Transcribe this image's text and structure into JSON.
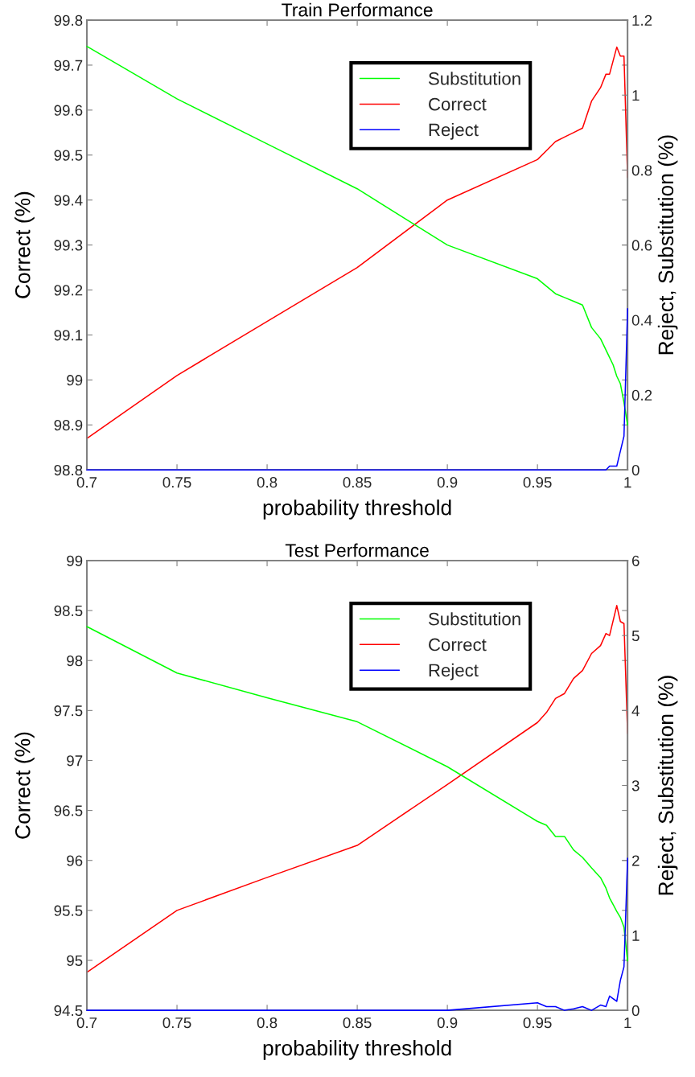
{
  "chart_data": [
    {
      "type": "line",
      "title": "Train Performance",
      "xlabel": "probability threshold",
      "ylabel": "Correct (%)",
      "y2label": "Reject, Substitution (%)",
      "x": [
        0.7,
        0.75,
        0.8,
        0.85,
        0.9,
        0.95,
        0.955,
        0.96,
        0.965,
        0.97,
        0.975,
        0.98,
        0.985,
        0.988,
        0.99,
        0.992,
        0.994,
        0.996,
        0.998,
        1.0
      ],
      "xlim": [
        0.7,
        1
      ],
      "xticks": [
        0.7,
        0.75,
        0.8,
        0.85,
        0.9,
        0.95,
        1
      ],
      "ylim": [
        98.8,
        99.8
      ],
      "yticks": [
        98.8,
        98.9,
        99,
        99.1,
        99.2,
        99.3,
        99.4,
        99.5,
        99.6,
        99.7,
        99.8
      ],
      "y2lim": [
        0,
        1.2
      ],
      "y2ticks": [
        0,
        0.2,
        0.4,
        0.6,
        0.8,
        1,
        1.2
      ],
      "grid": false,
      "legend": "top right",
      "series": [
        {
          "name": "Substitution",
          "color": "#00ff00",
          "axis": "y2",
          "values": [
            1.13,
            0.99,
            0.87,
            0.75,
            0.6,
            0.51,
            0.49,
            0.47,
            0.46,
            0.45,
            0.44,
            0.38,
            0.35,
            0.32,
            0.3,
            0.28,
            0.25,
            0.23,
            0.18,
            0.12
          ]
        },
        {
          "name": "Correct",
          "color": "#ff0000",
          "values": [
            98.87,
            99.01,
            99.13,
            99.25,
            99.4,
            99.49,
            99.51,
            99.53,
            99.54,
            99.55,
            99.56,
            99.62,
            99.65,
            99.68,
            99.68,
            99.71,
            99.74,
            99.72,
            99.72,
            99.45
          ]
        },
        {
          "name": "Reject",
          "color": "#0000ff",
          "axis": "y2",
          "values": [
            0,
            0,
            0,
            0,
            0,
            0,
            0,
            0,
            0,
            0,
            0,
            0,
            0,
            0,
            0.01,
            0.01,
            0.01,
            0.05,
            0.09,
            0.43
          ]
        }
      ]
    },
    {
      "type": "line",
      "title": "Test Performance",
      "xlabel": "probability threshold",
      "ylabel": "Correct (%)",
      "y2label": "Reject, Substitution (%)",
      "x": [
        0.7,
        0.75,
        0.8,
        0.85,
        0.9,
        0.95,
        0.955,
        0.96,
        0.965,
        0.97,
        0.975,
        0.98,
        0.985,
        0.988,
        0.99,
        0.994,
        0.996,
        0.998,
        1.0
      ],
      "xlim": [
        0.7,
        1
      ],
      "xticks": [
        0.7,
        0.75,
        0.8,
        0.85,
        0.9,
        0.95,
        1
      ],
      "ylim": [
        94.5,
        99
      ],
      "yticks": [
        94.5,
        95,
        95.5,
        96,
        96.5,
        97,
        97.5,
        98,
        98.5,
        99
      ],
      "y2lim": [
        0,
        6
      ],
      "y2ticks": [
        0,
        1,
        2,
        3,
        4,
        5,
        6
      ],
      "grid": false,
      "legend": "top right",
      "series": [
        {
          "name": "Substitution",
          "color": "#00ff00",
          "axis": "y2",
          "values": [
            5.12,
            4.5,
            4.17,
            3.85,
            3.25,
            2.52,
            2.47,
            2.32,
            2.32,
            2.14,
            2.04,
            1.9,
            1.77,
            1.63,
            1.5,
            1.32,
            1.24,
            1.11,
            0.66
          ]
        },
        {
          "name": "Correct",
          "color": "#ff0000",
          "values": [
            94.88,
            95.5,
            95.83,
            96.15,
            96.76,
            97.38,
            97.48,
            97.62,
            97.67,
            97.82,
            97.9,
            98.07,
            98.15,
            98.27,
            98.25,
            98.55,
            98.39,
            98.37,
            97.27
          ]
        },
        {
          "name": "Reject",
          "color": "#0000ff",
          "axis": "y2",
          "values": [
            0,
            0,
            0,
            0,
            0,
            0.1,
            0.05,
            0.05,
            0,
            0.02,
            0.05,
            0,
            0.07,
            0.05,
            0.19,
            0.12,
            0.4,
            0.58,
            2.03
          ]
        }
      ]
    }
  ]
}
